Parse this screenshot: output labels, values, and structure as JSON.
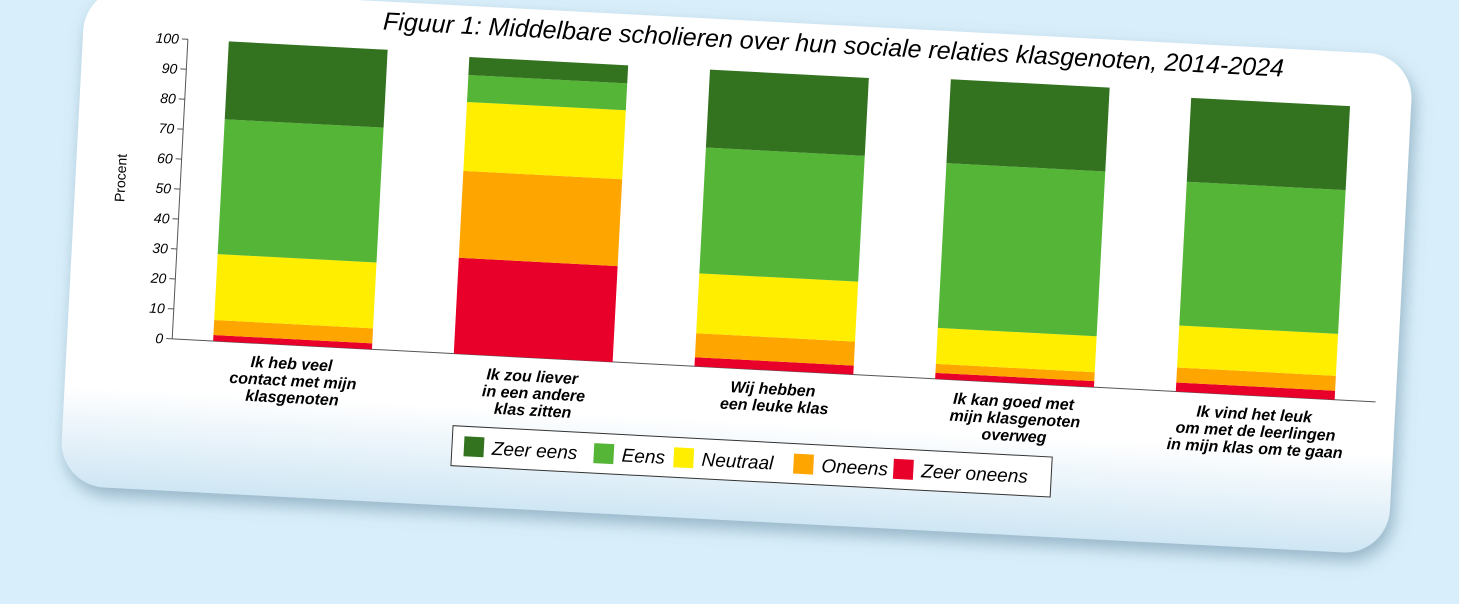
{
  "chart_data": {
    "type": "stacked_bar",
    "title": "Figuur 1: Middelbare scholieren over hun sociale relaties klasgenoten, 2014-2024",
    "y_label": "Procent",
    "categories": [
      "Ik heb veel\ncontact met mijn\nklasgenoten",
      "Ik zou liever\nin een andere\nklas zitten",
      "Wij hebben\neen leuke klas",
      "Ik kan goed met\nmijn klasgenoten\noverweg",
      "Ik vind het leuk\nom met de leerlingen\nin mijn klas om te gaan"
    ],
    "series": [
      {
        "name": "Zeer oneens",
        "color": "#e8002a",
        "values": [
          2,
          32,
          3,
          2,
          3
        ]
      },
      {
        "name": "Oneens",
        "color": "#ffa500",
        "values": [
          5,
          29,
          8,
          3,
          5
        ]
      },
      {
        "name": "Neutraal",
        "color": "#ffee00",
        "values": [
          22,
          23,
          20,
          12,
          14
        ]
      },
      {
        "name": "Eens",
        "color": "#55b536",
        "values": [
          45,
          9,
          42,
          55,
          48
        ]
      },
      {
        "name": "Zeer eens",
        "color": "#33731f",
        "values": [
          26,
          6,
          26,
          28,
          28
        ]
      }
    ],
    "legend_order": [
      "Zeer eens",
      "Eens",
      "Neutraal",
      "Oneens",
      "Zeer oneens"
    ],
    "ylim": [
      0,
      100
    ],
    "yticks": [
      0,
      10,
      20,
      30,
      40,
      50,
      60,
      70,
      80,
      90,
      100
    ]
  }
}
